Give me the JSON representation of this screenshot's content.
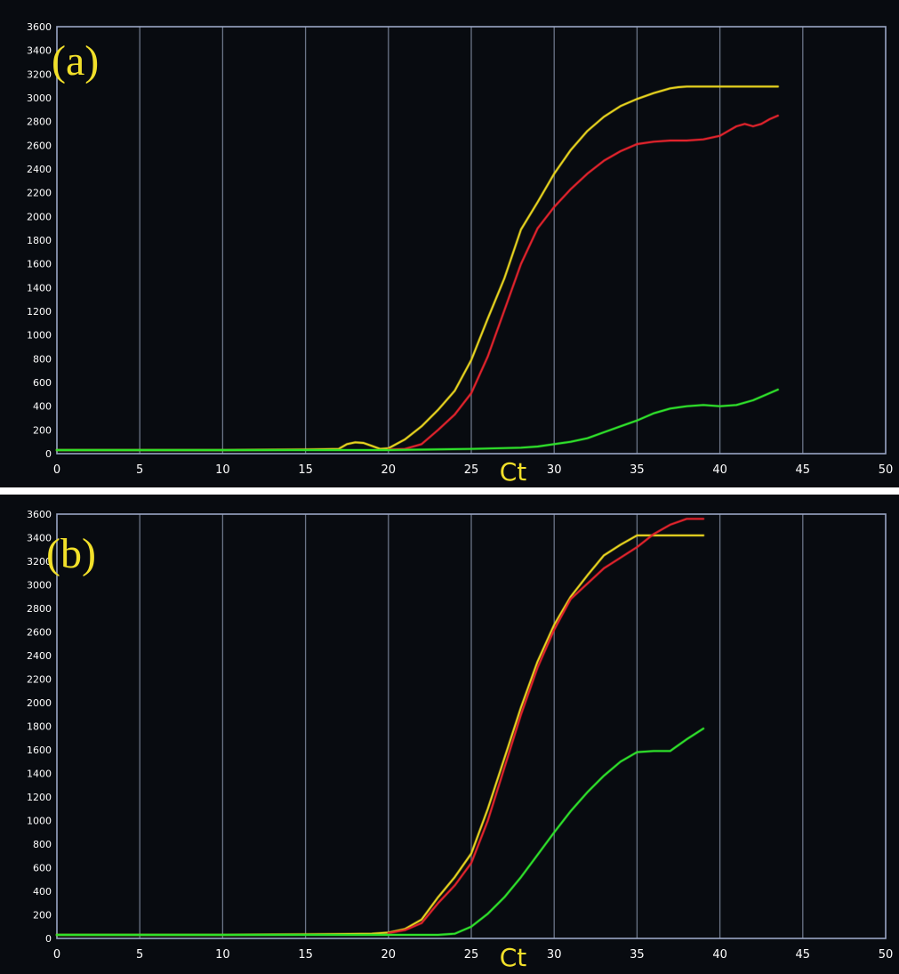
{
  "chart_data": [
    {
      "type": "line",
      "panel_label": "(a)",
      "xlabel": "Ct",
      "ylabel": "",
      "xlim": [
        0,
        50
      ],
      "ylim": [
        0,
        3600
      ],
      "xticks": [
        0,
        5,
        10,
        15,
        20,
        25,
        30,
        35,
        40,
        45,
        50
      ],
      "yticks": [
        0,
        200,
        400,
        600,
        800,
        1000,
        1200,
        1400,
        1600,
        1800,
        2000,
        2200,
        2400,
        2600,
        2800,
        3000,
        3200,
        3400,
        3600
      ],
      "grid": "vertical",
      "series": [
        {
          "color": "#e6d21f",
          "x": [
            0,
            5,
            10,
            15,
            17,
            17.5,
            18,
            18.5,
            19,
            19.5,
            20,
            21,
            22,
            23,
            24,
            25,
            26,
            27,
            28,
            29,
            30,
            31,
            32,
            33,
            34,
            35,
            36,
            37,
            37.5,
            38,
            39,
            40,
            41,
            42,
            43.5
          ],
          "y": [
            30,
            30,
            30,
            35,
            40,
            80,
            95,
            90,
            65,
            40,
            45,
            120,
            230,
            370,
            530,
            790,
            1140,
            1480,
            1890,
            2120,
            2360,
            2560,
            2720,
            2840,
            2930,
            2990,
            3040,
            3080,
            3090,
            3095,
            3095,
            3095,
            3095,
            3095,
            3095
          ]
        },
        {
          "color": "#e0232c",
          "x": [
            20,
            21,
            22,
            23,
            24,
            25,
            26,
            27,
            28,
            29,
            30,
            31,
            32,
            33,
            34,
            35,
            36,
            37,
            38,
            39,
            40,
            40.5,
            41,
            41.5,
            42,
            42.5,
            43,
            43.5
          ],
          "y": [
            35,
            40,
            80,
            200,
            330,
            510,
            820,
            1210,
            1600,
            1900,
            2080,
            2230,
            2360,
            2470,
            2550,
            2610,
            2630,
            2640,
            2640,
            2650,
            2680,
            2720,
            2760,
            2780,
            2760,
            2780,
            2820,
            2850
          ]
        },
        {
          "color": "#2fe02b",
          "x": [
            0,
            5,
            10,
            15,
            20,
            25,
            28,
            29,
            30,
            31,
            32,
            33,
            34,
            35,
            36,
            37,
            38,
            39,
            40,
            41,
            42,
            43.5
          ],
          "y": [
            30,
            30,
            30,
            30,
            30,
            40,
            50,
            60,
            80,
            100,
            130,
            180,
            230,
            280,
            340,
            380,
            400,
            410,
            400,
            410,
            450,
            540
          ]
        }
      ]
    },
    {
      "type": "line",
      "panel_label": "(b)",
      "xlabel": "Ct",
      "ylabel": "",
      "xlim": [
        0,
        50
      ],
      "ylim": [
        0,
        3600
      ],
      "xticks": [
        0,
        5,
        10,
        15,
        20,
        25,
        30,
        35,
        40,
        45,
        50
      ],
      "yticks": [
        0,
        200,
        400,
        600,
        800,
        1000,
        1200,
        1400,
        1600,
        1800,
        2000,
        2200,
        2400,
        2600,
        2800,
        3000,
        3200,
        3400,
        3600
      ],
      "grid": "vertical",
      "series": [
        {
          "color": "#e6d21f",
          "x": [
            0,
            5,
            10,
            15,
            19,
            20,
            21,
            22,
            23,
            24,
            25,
            26,
            27,
            28,
            29,
            30,
            31,
            32,
            33,
            34,
            35,
            36,
            37,
            38,
            39
          ],
          "y": [
            30,
            30,
            30,
            35,
            40,
            50,
            80,
            160,
            350,
            520,
            720,
            1100,
            1530,
            1960,
            2350,
            2660,
            2900,
            3080,
            3250,
            3340,
            3420,
            3420,
            3420,
            3420,
            3420
          ]
        },
        {
          "color": "#e0232c",
          "x": [
            20,
            21,
            22,
            23,
            24,
            25,
            26,
            27,
            28,
            29,
            30,
            31,
            32,
            33,
            34,
            35,
            36,
            37,
            38,
            39
          ],
          "y": [
            45,
            70,
            130,
            300,
            450,
            640,
            1000,
            1450,
            1900,
            2300,
            2620,
            2880,
            3010,
            3140,
            3230,
            3320,
            3430,
            3510,
            3560,
            3560
          ]
        },
        {
          "color": "#2fe02b",
          "x": [
            0,
            5,
            10,
            15,
            20,
            23,
            24,
            25,
            26,
            27,
            28,
            29,
            30,
            31,
            32,
            33,
            34,
            35,
            36,
            37,
            37.5,
            38,
            39
          ],
          "y": [
            30,
            30,
            30,
            30,
            30,
            30,
            40,
            100,
            210,
            350,
            520,
            710,
            900,
            1080,
            1240,
            1380,
            1500,
            1580,
            1590,
            1590,
            1640,
            1690,
            1780
          ]
        }
      ]
    }
  ]
}
